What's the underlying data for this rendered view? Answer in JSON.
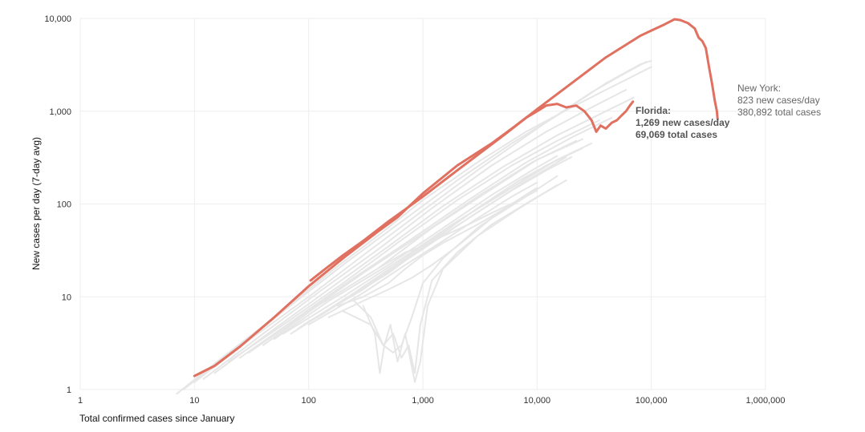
{
  "chart_data": {
    "type": "line",
    "title": "",
    "xlabel": "Total confirmed cases since January",
    "ylabel": "New cases per day (7-day avg)",
    "xscale": "log",
    "yscale": "log",
    "xlim": [
      1,
      1000000
    ],
    "ylim": [
      1,
      10000
    ],
    "grid": true,
    "xticks": [
      {
        "value": 1,
        "label": "1"
      },
      {
        "value": 10,
        "label": "10"
      },
      {
        "value": 100,
        "label": "100"
      },
      {
        "value": 1000,
        "label": "1,000"
      },
      {
        "value": 10000,
        "label": "10,000"
      },
      {
        "value": 100000,
        "label": "100,000"
      },
      {
        "value": 1000000,
        "label": "1,000,000"
      }
    ],
    "yticks": [
      {
        "value": 1,
        "label": "1"
      },
      {
        "value": 10,
        "label": "10"
      },
      {
        "value": 100,
        "label": "100"
      },
      {
        "value": 1000,
        "label": "1,000"
      },
      {
        "value": 10000,
        "label": "10,000"
      }
    ],
    "colors": {
      "highlight": "#e07060",
      "background": "#e6e6e6",
      "grid": "#eeeeee"
    },
    "series": [
      {
        "name": "New York",
        "highlight": true,
        "points": [
          [
            104,
            15
          ],
          [
            140,
            20
          ],
          [
            200,
            28
          ],
          [
            300,
            40
          ],
          [
            500,
            65
          ],
          [
            1000,
            120
          ],
          [
            2000,
            230
          ],
          [
            5000,
            540
          ],
          [
            10000,
            1050
          ],
          [
            20000,
            2000
          ],
          [
            40000,
            3800
          ],
          [
            60000,
            5200
          ],
          [
            80000,
            6500
          ],
          [
            100000,
            7400
          ],
          [
            130000,
            8600
          ],
          [
            160000,
            9800
          ],
          [
            180000,
            9600
          ],
          [
            210000,
            8900
          ],
          [
            240000,
            7800
          ],
          [
            260000,
            6200
          ],
          [
            280000,
            5700
          ],
          [
            300000,
            4800
          ],
          [
            320000,
            3000
          ],
          [
            340000,
            2000
          ],
          [
            360000,
            1300
          ],
          [
            375000,
            1000
          ],
          [
            380892,
            823
          ]
        ],
        "annotation": [
          "New York:",
          "823 new cases/day",
          "380,892 total cases"
        ]
      },
      {
        "name": "Florida",
        "highlight": true,
        "points": [
          [
            10,
            1.4
          ],
          [
            15,
            1.8
          ],
          [
            25,
            2.9
          ],
          [
            50,
            6
          ],
          [
            100,
            13
          ],
          [
            200,
            26
          ],
          [
            400,
            50
          ],
          [
            600,
            72
          ],
          [
            1000,
            130
          ],
          [
            2000,
            260
          ],
          [
            4000,
            450
          ],
          [
            6000,
            650
          ],
          [
            8000,
            850
          ],
          [
            10000,
            1000
          ],
          [
            12000,
            1150
          ],
          [
            15000,
            1200
          ],
          [
            18000,
            1100
          ],
          [
            22000,
            1150
          ],
          [
            26000,
            1000
          ],
          [
            30000,
            800
          ],
          [
            33000,
            600
          ],
          [
            36000,
            700
          ],
          [
            40000,
            650
          ],
          [
            45000,
            750
          ],
          [
            50000,
            800
          ],
          [
            55000,
            900
          ],
          [
            60000,
            1000
          ],
          [
            65000,
            1150
          ],
          [
            69069,
            1269
          ]
        ],
        "annotation": [
          "Florida:",
          "1,269 new cases/day",
          "69,069 total cases"
        ]
      },
      {
        "name": "",
        "points": [
          [
            7,
            0.9
          ],
          [
            15,
            1.9
          ],
          [
            50,
            6
          ],
          [
            150,
            18
          ],
          [
            400,
            45
          ],
          [
            1000,
            110
          ],
          [
            3000,
            280
          ],
          [
            8000,
            600
          ],
          [
            20000,
            1100
          ],
          [
            40000,
            1700
          ],
          [
            70000,
            2400
          ],
          [
            100000,
            3000
          ]
        ]
      },
      {
        "name": "",
        "points": [
          [
            8,
            1
          ],
          [
            20,
            2.4
          ],
          [
            60,
            7
          ],
          [
            200,
            22
          ],
          [
            600,
            60
          ],
          [
            2000,
            180
          ],
          [
            6000,
            450
          ],
          [
            15000,
            900
          ],
          [
            40000,
            2000
          ],
          [
            80000,
            3200
          ],
          [
            100000,
            3500
          ]
        ]
      },
      {
        "name": "",
        "points": [
          [
            10,
            1.2
          ],
          [
            30,
            3.4
          ],
          [
            100,
            10
          ],
          [
            300,
            28
          ],
          [
            1000,
            85
          ],
          [
            3000,
            230
          ],
          [
            10000,
            650
          ],
          [
            30000,
            1600
          ],
          [
            60000,
            2600
          ],
          [
            90000,
            3400
          ]
        ]
      },
      {
        "name": "",
        "points": [
          [
            12,
            1.3
          ],
          [
            40,
            4
          ],
          [
            120,
            11
          ],
          [
            400,
            32
          ],
          [
            1200,
            90
          ],
          [
            4000,
            260
          ],
          [
            12000,
            600
          ],
          [
            30000,
            1100
          ],
          [
            60000,
            1700
          ]
        ]
      },
      {
        "name": "",
        "points": [
          [
            15,
            1.5
          ],
          [
            50,
            4.5
          ],
          [
            150,
            12
          ],
          [
            500,
            35
          ],
          [
            1500,
            95
          ],
          [
            5000,
            250
          ],
          [
            15000,
            550
          ],
          [
            40000,
            1000
          ],
          [
            70000,
            1400
          ]
        ]
      },
      {
        "name": "",
        "points": [
          [
            20,
            2
          ],
          [
            60,
            5
          ],
          [
            200,
            14
          ],
          [
            600,
            38
          ],
          [
            2000,
            110
          ],
          [
            6000,
            260
          ],
          [
            15000,
            480
          ],
          [
            35000,
            800
          ]
        ]
      },
      {
        "name": "",
        "points": [
          [
            25,
            2.2
          ],
          [
            80,
            6
          ],
          [
            250,
            16
          ],
          [
            800,
            42
          ],
          [
            2500,
            110
          ],
          [
            8000,
            280
          ],
          [
            20000,
            520
          ],
          [
            45000,
            850
          ]
        ]
      },
      {
        "name": "",
        "points": [
          [
            30,
            2.5
          ],
          [
            100,
            7
          ],
          [
            300,
            18
          ],
          [
            1000,
            48
          ],
          [
            3000,
            120
          ],
          [
            9000,
            280
          ],
          [
            22000,
            480
          ]
        ]
      },
      {
        "name": "",
        "points": [
          [
            40,
            3
          ],
          [
            120,
            8
          ],
          [
            400,
            20
          ],
          [
            1200,
            55
          ],
          [
            3500,
            130
          ],
          [
            10000,
            300
          ],
          [
            25000,
            500
          ]
        ]
      },
      {
        "name": "",
        "points": [
          [
            50,
            3.5
          ],
          [
            150,
            9
          ],
          [
            500,
            22
          ],
          [
            1500,
            55
          ],
          [
            4000,
            125
          ],
          [
            9000,
            230
          ],
          [
            15000,
            330
          ]
        ]
      },
      {
        "name": "",
        "points": [
          [
            60,
            4
          ],
          [
            200,
            10
          ],
          [
            600,
            24
          ],
          [
            1800,
            60
          ],
          [
            5000,
            130
          ],
          [
            12000,
            260
          ],
          [
            25000,
            400
          ]
        ]
      },
      {
        "name": "",
        "points": [
          [
            70,
            4
          ],
          [
            200,
            9
          ],
          [
            500,
            18
          ],
          [
            1200,
            40
          ],
          [
            3000,
            90
          ],
          [
            7000,
            180
          ],
          [
            15000,
            300
          ]
        ]
      },
      {
        "name": "",
        "points": [
          [
            80,
            4.5
          ],
          [
            250,
            11
          ],
          [
            700,
            26
          ],
          [
            2000,
            65
          ],
          [
            6000,
            150
          ],
          [
            15000,
            300
          ],
          [
            30000,
            450
          ]
        ]
      },
      {
        "name": "",
        "points": [
          [
            90,
            5
          ],
          [
            300,
            12
          ],
          [
            800,
            28
          ],
          [
            2500,
            70
          ],
          [
            7000,
            160
          ],
          [
            18000,
            320
          ]
        ]
      },
      {
        "name": "",
        "points": [
          [
            100,
            5
          ],
          [
            300,
            11
          ],
          [
            700,
            22
          ],
          [
            1500,
            40
          ],
          [
            3000,
            70
          ],
          [
            6000,
            120
          ],
          [
            10000,
            170
          ]
        ]
      },
      {
        "name": "",
        "points": [
          [
            120,
            6
          ],
          [
            350,
            14
          ],
          [
            900,
            30
          ],
          [
            2500,
            70
          ],
          [
            6000,
            140
          ],
          [
            12000,
            230
          ],
          [
            20000,
            320
          ]
        ]
      },
      {
        "name": "",
        "points": [
          [
            150,
            6
          ],
          [
            300,
            9
          ],
          [
            500,
            12
          ],
          [
            800,
            16
          ],
          [
            1200,
            22
          ],
          [
            2000,
            35
          ],
          [
            4000,
            70
          ],
          [
            8000,
            120
          ],
          [
            15000,
            200
          ]
        ]
      },
      {
        "name": "",
        "points": [
          [
            200,
            7
          ],
          [
            350,
            5
          ],
          [
            450,
            3
          ],
          [
            550,
            2.5
          ],
          [
            650,
            3
          ],
          [
            800,
            6
          ],
          [
            1000,
            14
          ],
          [
            1500,
            26
          ],
          [
            3000,
            55
          ],
          [
            6000,
            100
          ],
          [
            10000,
            150
          ]
        ]
      },
      {
        "name": "",
        "points": [
          [
            300,
            8
          ],
          [
            380,
            4
          ],
          [
            420,
            1.5
          ],
          [
            460,
            3
          ],
          [
            520,
            5
          ],
          [
            600,
            2
          ],
          [
            700,
            4
          ],
          [
            850,
            1.2
          ],
          [
            950,
            2
          ],
          [
            1100,
            8
          ],
          [
            1500,
            20
          ],
          [
            3000,
            45
          ],
          [
            7000,
            90
          ],
          [
            15000,
            160
          ]
        ]
      },
      {
        "name": "",
        "points": [
          [
            250,
            9
          ],
          [
            350,
            6
          ],
          [
            450,
            3
          ],
          [
            550,
            4
          ],
          [
            650,
            2.2
          ],
          [
            750,
            3
          ],
          [
            850,
            1.5
          ],
          [
            950,
            5
          ],
          [
            1200,
            15
          ],
          [
            2000,
            30
          ],
          [
            4000,
            60
          ],
          [
            9000,
            110
          ],
          [
            18000,
            180
          ]
        ]
      },
      {
        "name": "",
        "points": [
          [
            180,
            8
          ],
          [
            300,
            10
          ],
          [
            500,
            14
          ],
          [
            700,
            20
          ],
          [
            1000,
            28
          ],
          [
            1500,
            38
          ],
          [
            3000,
            60
          ],
          [
            7000,
            110
          ]
        ]
      },
      {
        "name": "",
        "points": [
          [
            400,
            20
          ],
          [
            700,
            30
          ],
          [
            1000,
            35
          ],
          [
            1500,
            45
          ],
          [
            2500,
            60
          ],
          [
            4000,
            80
          ],
          [
            7000,
            110
          ],
          [
            10000,
            140
          ]
        ]
      }
    ]
  }
}
